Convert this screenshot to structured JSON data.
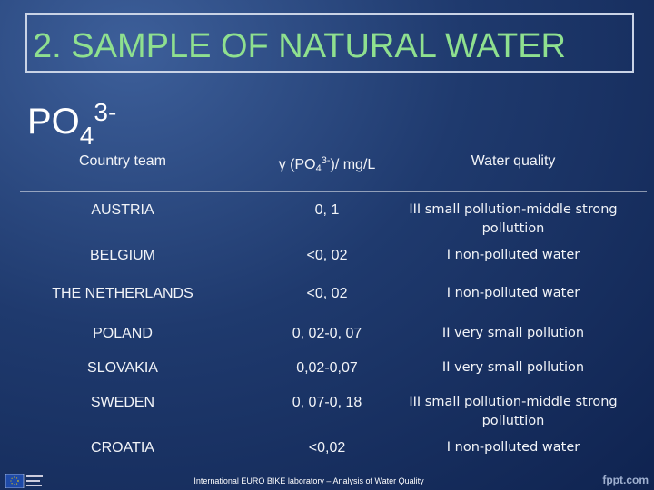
{
  "title": "2. SAMPLE OF NATURAL WATER",
  "formula": {
    "base": "PO",
    "sub": "4",
    "sup": "3-"
  },
  "table": {
    "header": {
      "country": "Country team",
      "concentration": {
        "symbol": "γ",
        "open": "(PO",
        "sub": "4",
        "sup": "3-",
        "close": ")/ mg/L"
      },
      "quality": "Water quality"
    },
    "rows": [
      [
        "AUSTRIA",
        "0, 1",
        "III small pollution-middle strong polluttion"
      ],
      [
        "BELGIUM",
        "<0, 02",
        "I  non-polluted water"
      ],
      [
        "THE NETHERLANDS",
        "<0, 02",
        "I  non-polluted water"
      ],
      [
        "POLAND",
        "0, 02-0, 07",
        "II very small pollution"
      ],
      [
        "SLOVAKIA",
        "0,02-0,07",
        "II very small pollution"
      ],
      [
        "SWEDEN",
        "0, 07-0, 18",
        "III small pollution-middle strong polluttion"
      ],
      [
        "CROATIA",
        "<0,02",
        "I  non-polluted water"
      ]
    ]
  },
  "footer": "International EURO BIKE laboratory – Analysis of Water Quality",
  "watermark": "fppt.com"
}
